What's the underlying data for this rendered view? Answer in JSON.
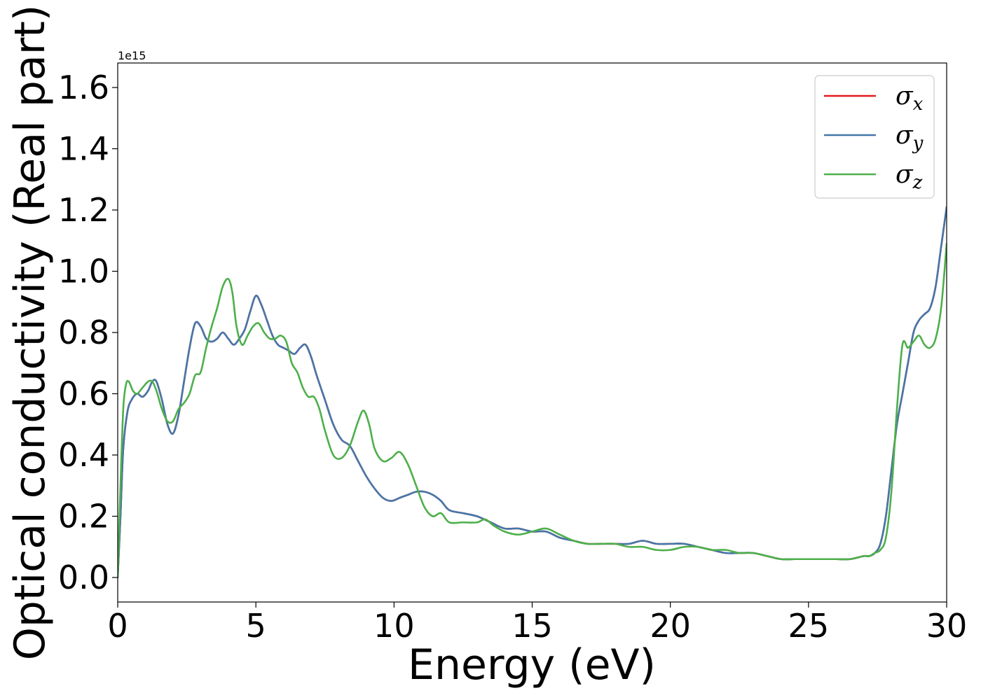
{
  "chart_data": {
    "type": "line",
    "xlabel": "Energy (eV)",
    "ylabel": "Optical conductivity (Real part)",
    "y_offset_text": "1e15",
    "xlim": [
      0,
      30
    ],
    "ylim": [
      -0.08,
      1.68
    ],
    "x_ticks": [
      0,
      5,
      10,
      15,
      20,
      25,
      30
    ],
    "x_tick_labels": [
      "0",
      "5",
      "10",
      "15",
      "20",
      "25",
      "30"
    ],
    "y_ticks": [
      0.0,
      0.2,
      0.4,
      0.6,
      0.8,
      1.0,
      1.2,
      1.4,
      1.6
    ],
    "y_tick_labels": [
      "0.0",
      "0.2",
      "0.4",
      "0.6",
      "0.8",
      "1.0",
      "1.2",
      "1.4",
      "1.6"
    ],
    "grid": false,
    "legend_position": "upper-right",
    "series": [
      {
        "name": "σx",
        "legend_base": "σ",
        "legend_sub": "x",
        "color": "#e41a1c",
        "x": [
          0,
          0.1,
          0.2,
          0.35,
          0.5,
          0.7,
          0.9,
          1.1,
          1.25,
          1.4,
          1.6,
          1.8,
          2.0,
          2.2,
          2.4,
          2.6,
          2.8,
          3.0,
          3.2,
          3.4,
          3.6,
          3.8,
          4.0,
          4.2,
          4.4,
          4.6,
          4.8,
          5.0,
          5.2,
          5.4,
          5.6,
          5.8,
          6.0,
          6.2,
          6.4,
          6.6,
          6.8,
          7.0,
          7.2,
          7.5,
          7.8,
          8.1,
          8.4,
          8.7,
          9.0,
          9.3,
          9.6,
          9.9,
          10.2,
          10.5,
          10.8,
          11.1,
          11.4,
          11.7,
          12.0,
          12.5,
          13.0,
          13.5,
          14.0,
          14.5,
          15.0,
          15.5,
          16.0,
          16.5,
          17.0,
          17.5,
          18.0,
          18.5,
          19.0,
          19.5,
          20.0,
          20.5,
          21.0,
          21.5,
          22.0,
          22.5,
          23.0,
          23.5,
          24.0,
          24.5,
          25.0,
          25.5,
          26.0,
          26.5,
          27.0,
          27.2,
          27.4,
          27.6,
          27.8,
          28.0,
          28.2,
          28.4,
          28.6,
          28.8,
          29.0,
          29.2,
          29.4,
          29.6,
          29.8,
          30.0
        ],
        "y": [
          0.0,
          0.2,
          0.42,
          0.54,
          0.58,
          0.6,
          0.59,
          0.61,
          0.64,
          0.64,
          0.58,
          0.5,
          0.47,
          0.53,
          0.64,
          0.75,
          0.83,
          0.82,
          0.78,
          0.77,
          0.78,
          0.8,
          0.78,
          0.76,
          0.78,
          0.81,
          0.87,
          0.92,
          0.89,
          0.84,
          0.79,
          0.76,
          0.75,
          0.74,
          0.73,
          0.75,
          0.76,
          0.72,
          0.66,
          0.58,
          0.5,
          0.45,
          0.43,
          0.38,
          0.33,
          0.29,
          0.26,
          0.25,
          0.26,
          0.27,
          0.28,
          0.28,
          0.27,
          0.25,
          0.22,
          0.21,
          0.2,
          0.18,
          0.16,
          0.16,
          0.15,
          0.15,
          0.13,
          0.12,
          0.11,
          0.11,
          0.11,
          0.11,
          0.12,
          0.11,
          0.11,
          0.11,
          0.1,
          0.09,
          0.08,
          0.08,
          0.08,
          0.07,
          0.06,
          0.06,
          0.06,
          0.06,
          0.06,
          0.06,
          0.07,
          0.07,
          0.08,
          0.11,
          0.2,
          0.35,
          0.5,
          0.6,
          0.7,
          0.8,
          0.84,
          0.86,
          0.88,
          0.95,
          1.08,
          1.21
        ]
      },
      {
        "name": "σy",
        "legend_base": "σ",
        "legend_sub": "y",
        "color": "#4477aa",
        "x": [
          0,
          0.1,
          0.2,
          0.35,
          0.5,
          0.7,
          0.9,
          1.1,
          1.25,
          1.4,
          1.6,
          1.8,
          2.0,
          2.2,
          2.4,
          2.6,
          2.8,
          3.0,
          3.2,
          3.4,
          3.6,
          3.8,
          4.0,
          4.2,
          4.4,
          4.6,
          4.8,
          5.0,
          5.2,
          5.4,
          5.6,
          5.8,
          6.0,
          6.2,
          6.4,
          6.6,
          6.8,
          7.0,
          7.2,
          7.5,
          7.8,
          8.1,
          8.4,
          8.7,
          9.0,
          9.3,
          9.6,
          9.9,
          10.2,
          10.5,
          10.8,
          11.1,
          11.4,
          11.7,
          12.0,
          12.5,
          13.0,
          13.5,
          14.0,
          14.5,
          15.0,
          15.5,
          16.0,
          16.5,
          17.0,
          17.5,
          18.0,
          18.5,
          19.0,
          19.5,
          20.0,
          20.5,
          21.0,
          21.5,
          22.0,
          22.5,
          23.0,
          23.5,
          24.0,
          24.5,
          25.0,
          25.5,
          26.0,
          26.5,
          27.0,
          27.2,
          27.4,
          27.6,
          27.8,
          28.0,
          28.2,
          28.4,
          28.6,
          28.8,
          29.0,
          29.2,
          29.4,
          29.6,
          29.8,
          30.0
        ],
        "y": [
          0.0,
          0.2,
          0.42,
          0.54,
          0.58,
          0.6,
          0.59,
          0.61,
          0.64,
          0.64,
          0.58,
          0.5,
          0.47,
          0.53,
          0.64,
          0.75,
          0.83,
          0.82,
          0.78,
          0.77,
          0.78,
          0.8,
          0.78,
          0.76,
          0.78,
          0.81,
          0.87,
          0.92,
          0.89,
          0.84,
          0.79,
          0.76,
          0.75,
          0.74,
          0.73,
          0.75,
          0.76,
          0.72,
          0.66,
          0.58,
          0.5,
          0.45,
          0.43,
          0.38,
          0.33,
          0.29,
          0.26,
          0.25,
          0.26,
          0.27,
          0.28,
          0.28,
          0.27,
          0.25,
          0.22,
          0.21,
          0.2,
          0.18,
          0.16,
          0.16,
          0.15,
          0.15,
          0.13,
          0.12,
          0.11,
          0.11,
          0.11,
          0.11,
          0.12,
          0.11,
          0.11,
          0.11,
          0.1,
          0.09,
          0.08,
          0.08,
          0.08,
          0.07,
          0.06,
          0.06,
          0.06,
          0.06,
          0.06,
          0.06,
          0.07,
          0.07,
          0.08,
          0.11,
          0.2,
          0.35,
          0.5,
          0.6,
          0.7,
          0.8,
          0.84,
          0.86,
          0.88,
          0.95,
          1.08,
          1.21
        ]
      },
      {
        "name": "σz",
        "legend_base": "σ",
        "legend_sub": "z",
        "color": "#4daf4a",
        "x": [
          0,
          0.1,
          0.2,
          0.3,
          0.4,
          0.55,
          0.7,
          0.9,
          1.1,
          1.25,
          1.4,
          1.6,
          1.8,
          2.0,
          2.2,
          2.4,
          2.6,
          2.8,
          3.0,
          3.2,
          3.4,
          3.6,
          3.8,
          4.0,
          4.15,
          4.3,
          4.5,
          4.7,
          4.9,
          5.1,
          5.3,
          5.5,
          5.7,
          5.9,
          6.1,
          6.3,
          6.5,
          6.7,
          6.9,
          7.1,
          7.3,
          7.5,
          7.8,
          8.1,
          8.4,
          8.7,
          8.9,
          9.1,
          9.3,
          9.6,
          9.9,
          10.2,
          10.5,
          10.8,
          11.1,
          11.4,
          11.7,
          12.0,
          12.5,
          13.0,
          13.3,
          13.6,
          14.0,
          14.5,
          15.0,
          15.5,
          16.0,
          16.5,
          17.0,
          17.5,
          18.0,
          18.5,
          19.0,
          19.5,
          20.0,
          20.5,
          21.0,
          21.5,
          22.0,
          22.5,
          23.0,
          23.5,
          24.0,
          24.5,
          25.0,
          25.5,
          26.0,
          26.5,
          27.0,
          27.2,
          27.4,
          27.6,
          27.8,
          28.0,
          28.2,
          28.4,
          28.6,
          28.8,
          29.0,
          29.2,
          29.4,
          29.6,
          29.8,
          30.0
        ],
        "y": [
          0.0,
          0.3,
          0.55,
          0.63,
          0.64,
          0.61,
          0.6,
          0.62,
          0.64,
          0.64,
          0.61,
          0.55,
          0.51,
          0.51,
          0.55,
          0.57,
          0.6,
          0.66,
          0.67,
          0.75,
          0.82,
          0.88,
          0.95,
          0.975,
          0.93,
          0.82,
          0.76,
          0.79,
          0.82,
          0.83,
          0.8,
          0.78,
          0.78,
          0.79,
          0.77,
          0.7,
          0.67,
          0.62,
          0.59,
          0.59,
          0.55,
          0.48,
          0.4,
          0.39,
          0.43,
          0.51,
          0.545,
          0.5,
          0.42,
          0.38,
          0.39,
          0.41,
          0.37,
          0.3,
          0.23,
          0.2,
          0.21,
          0.18,
          0.18,
          0.18,
          0.19,
          0.17,
          0.15,
          0.14,
          0.15,
          0.16,
          0.14,
          0.12,
          0.11,
          0.11,
          0.11,
          0.1,
          0.1,
          0.09,
          0.09,
          0.1,
          0.1,
          0.09,
          0.09,
          0.08,
          0.08,
          0.07,
          0.06,
          0.06,
          0.06,
          0.06,
          0.06,
          0.06,
          0.07,
          0.07,
          0.08,
          0.09,
          0.13,
          0.28,
          0.55,
          0.76,
          0.75,
          0.77,
          0.79,
          0.76,
          0.75,
          0.78,
          0.88,
          1.09
        ]
      }
    ]
  }
}
